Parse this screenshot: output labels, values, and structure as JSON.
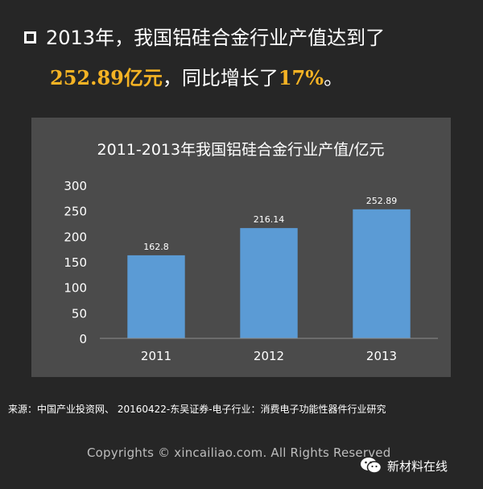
{
  "headline": {
    "line1_text": "2013年，我国铝硅合金行业产值达到了",
    "value": "252.89亿元",
    "middle": "，同比增长了",
    "growth": "17%",
    "end": "。"
  },
  "chart_data": {
    "type": "bar",
    "title": "2011-2013年我国铝硅合金行业产值/亿元",
    "categories": [
      "2011",
      "2012",
      "2013"
    ],
    "values": [
      162.8,
      216.14,
      252.89
    ],
    "data_labels": [
      "162.8",
      "216.14",
      "252.89"
    ],
    "ylim": [
      0,
      300
    ],
    "yticks": [
      "0",
      "50",
      "100",
      "150",
      "200",
      "250",
      "300"
    ],
    "xlabel": "",
    "ylabel": "",
    "grid": false,
    "legend": "none",
    "bar_color": "#5b9bd5"
  },
  "footer": {
    "source": "来源：中国产业投资网、 20160422-东吴证券-电子行业：消费电子功能性器件行业研究",
    "copyright": "Copyrights © xincailiao.com. All Rights Reserved",
    "brand": "新材料在线",
    "brand_icon": "wechat-icon"
  }
}
